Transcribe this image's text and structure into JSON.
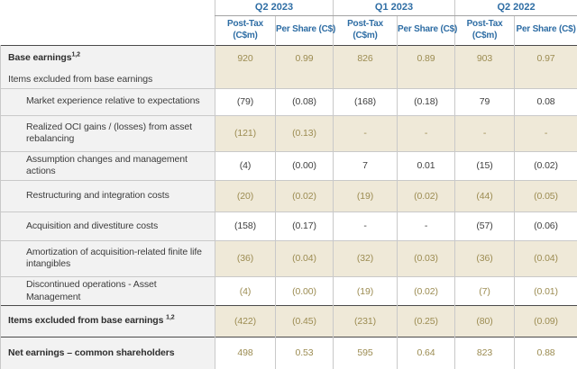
{
  "colors": {
    "header_blue": "#2E6DA4",
    "shaded_beige": "#EFE9D8",
    "gold_text": "#9C8C52",
    "label_column_bg": "#F2F2F2",
    "dark_text": "#404040",
    "light_border": "#C9C9C9",
    "heavy_border": "#4A4A4A"
  },
  "table": {
    "quarter_groups": [
      {
        "label": "Q2 2023",
        "columns": [
          "Post-Tax\n(C$m)",
          "Per Share (C$)"
        ]
      },
      {
        "label": "Q1 2023",
        "columns": [
          "Post-Tax\n(C$m)",
          "Per Share (C$)"
        ]
      },
      {
        "label": "Q2 2022",
        "columns": [
          "Post-Tax\n(C$m)",
          "Per Share (C$)"
        ]
      }
    ],
    "rows": [
      {
        "label": "Base earnings",
        "sup": "1,2",
        "bold": true,
        "indent": false,
        "shaded": true,
        "gold": true,
        "values": [
          "920",
          "0.99",
          "826",
          "0.89",
          "903",
          "0.97"
        ]
      },
      {
        "label": "Items excluded from base earnings",
        "bold": false,
        "indent": false,
        "shaded": true,
        "gold": true,
        "values": [
          "",
          "",
          "",
          "",
          "",
          ""
        ]
      },
      {
        "label": "Market experience relative to expectations",
        "bold": false,
        "indent": true,
        "shaded": false,
        "gold": false,
        "values": [
          "(79)",
          "(0.08)",
          "(168)",
          "(0.18)",
          "79",
          "0.08"
        ]
      },
      {
        "label": "Realized OCI gains / (losses) from asset rebalancing",
        "bold": false,
        "indent": true,
        "shaded": true,
        "gold": true,
        "values": [
          "(121)",
          "(0.13)",
          "-",
          "-",
          "-",
          "-"
        ]
      },
      {
        "label": "Assumption changes and management actions",
        "bold": false,
        "indent": true,
        "shaded": false,
        "gold": false,
        "values": [
          "(4)",
          "(0.00)",
          "7",
          "0.01",
          "(15)",
          "(0.02)"
        ]
      },
      {
        "label": "Restructuring and integration costs",
        "bold": false,
        "indent": true,
        "shaded": true,
        "gold": true,
        "values": [
          "(20)",
          "(0.02)",
          "(19)",
          "(0.02)",
          "(44)",
          "(0.05)"
        ]
      },
      {
        "label": "Acquisition and divestiture costs",
        "bold": false,
        "indent": true,
        "shaded": false,
        "gold": false,
        "values": [
          "(158)",
          "(0.17)",
          "-",
          "-",
          "(57)",
          "(0.06)"
        ]
      },
      {
        "label": "Amortization of acquisition-related finite life intangibles",
        "bold": false,
        "indent": true,
        "shaded": true,
        "gold": true,
        "values": [
          "(36)",
          "(0.04)",
          "(32)",
          "(0.03)",
          "(36)",
          "(0.04)"
        ]
      },
      {
        "label": "Discontinued operations - Asset Management",
        "bold": false,
        "indent": true,
        "shaded": false,
        "gold": true,
        "values": [
          "(4)",
          "(0.00)",
          "(19)",
          "(0.02)",
          "(7)",
          "(0.01)"
        ]
      },
      {
        "label": "Items excluded from base earnings ",
        "sup": "1,2",
        "bold": true,
        "indent": false,
        "shaded": true,
        "gold": true,
        "values": [
          "(422)",
          "(0.45)",
          "(231)",
          "(0.25)",
          "(80)",
          "(0.09)"
        ]
      },
      {
        "label": "Net earnings – common shareholders",
        "bold": true,
        "indent": false,
        "shaded": false,
        "gold": true,
        "values": [
          "498",
          "0.53",
          "595",
          "0.64",
          "823",
          "0.88"
        ]
      }
    ]
  }
}
